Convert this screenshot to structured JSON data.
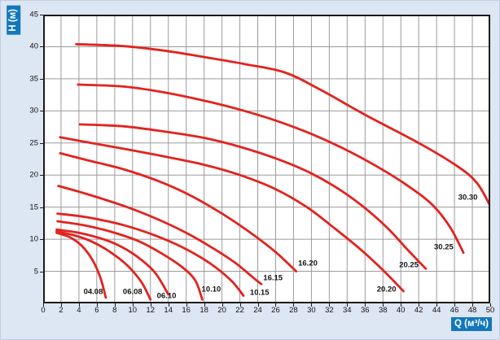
{
  "axis_title_background": "#1277bd",
  "chart_data": {
    "type": "line",
    "title": "",
    "xlabel": "Q (м³/ч)",
    "ylabel": "H (м)",
    "xlim": [
      0,
      50
    ],
    "ylim": [
      0,
      45
    ],
    "x_ticks": [
      0,
      2,
      4,
      6,
      8,
      10,
      12,
      14,
      16,
      18,
      20,
      22,
      24,
      26,
      28,
      30,
      32,
      34,
      36,
      38,
      40,
      42,
      44,
      46,
      48,
      50
    ],
    "y_ticks": [
      5,
      10,
      15,
      20,
      25,
      30,
      35,
      40,
      45
    ],
    "grid": true,
    "grid_color": "#9b9b9b",
    "frame_color": "#1b1b1b",
    "plot_background": "#ffffff",
    "curve_color": "#e2231f",
    "legend_position": "none",
    "series": [
      {
        "name": "04.08",
        "label_pos": {
          "x": 5.6,
          "y": 1.8
        },
        "points": [
          [
            1.5,
            11.0
          ],
          [
            3.0,
            10.3
          ],
          [
            4.3,
            9.0
          ],
          [
            5.5,
            6.8
          ],
          [
            6.4,
            4.0
          ],
          [
            7.0,
            0.9
          ]
        ]
      },
      {
        "name": "06.08",
        "label_pos": {
          "x": 10.0,
          "y": 1.8
        },
        "points": [
          [
            1.5,
            11.2
          ],
          [
            3.5,
            10.6
          ],
          [
            5.5,
            9.6
          ],
          [
            7.5,
            8.0
          ],
          [
            9.5,
            5.8
          ],
          [
            11.0,
            3.3
          ],
          [
            12.0,
            0.6
          ]
        ]
      },
      {
        "name": "06.10",
        "label_pos": {
          "x": 13.8,
          "y": 1.2
        },
        "points": [
          [
            1.5,
            11.5
          ],
          [
            4.0,
            11.0
          ],
          [
            6.5,
            10.1
          ],
          [
            8.5,
            9.0
          ],
          [
            10.5,
            7.3
          ],
          [
            12.5,
            4.8
          ],
          [
            14.0,
            1.4
          ]
        ]
      },
      {
        "name": "10.10",
        "label_pos": {
          "x": 18.8,
          "y": 2.2
        },
        "points": [
          [
            1.6,
            12.8
          ],
          [
            4.5,
            12.2
          ],
          [
            7.5,
            11.2
          ],
          [
            10.5,
            9.8
          ],
          [
            13.0,
            8.0
          ],
          [
            15.5,
            5.7
          ],
          [
            17.0,
            3.6
          ],
          [
            17.8,
            0.6
          ]
        ]
      },
      {
        "name": "10.15",
        "label_pos": {
          "x": 24.2,
          "y": 1.6
        },
        "points": [
          [
            1.6,
            14.0
          ],
          [
            5.0,
            13.4
          ],
          [
            9.0,
            12.2
          ],
          [
            12.5,
            10.6
          ],
          [
            15.5,
            8.8
          ],
          [
            18.5,
            6.4
          ],
          [
            21.0,
            3.6
          ],
          [
            22.4,
            1.2
          ]
        ]
      },
      {
        "name": "16.15",
        "label_pos": {
          "x": 25.7,
          "y": 3.9
        },
        "points": [
          [
            1.7,
            18.3
          ],
          [
            5.0,
            17.0
          ],
          [
            9.0,
            15.2
          ],
          [
            12.5,
            13.3
          ],
          [
            16.0,
            11.0
          ],
          [
            19.0,
            8.6
          ],
          [
            21.5,
            6.3
          ],
          [
            23.5,
            4.0
          ],
          [
            24.4,
            3.0
          ]
        ]
      },
      {
        "name": "16.20",
        "label_pos": {
          "x": 29.6,
          "y": 6.2
        },
        "points": [
          [
            1.9,
            23.4
          ],
          [
            5.0,
            22.3
          ],
          [
            9.0,
            20.9
          ],
          [
            13.0,
            19.0
          ],
          [
            16.5,
            16.8
          ],
          [
            20.0,
            14.0
          ],
          [
            23.0,
            11.2
          ],
          [
            26.0,
            8.0
          ],
          [
            28.3,
            5.0
          ]
        ]
      },
      {
        "name": "20.20",
        "label_pos": {
          "x": 38.4,
          "y": 2.2
        },
        "points": [
          [
            1.9,
            25.9
          ],
          [
            5.0,
            25.1
          ],
          [
            9.0,
            24.1
          ],
          [
            13.5,
            22.9
          ],
          [
            18.0,
            21.6
          ],
          [
            22.0,
            20.0
          ],
          [
            26.0,
            17.8
          ],
          [
            29.5,
            15.0
          ],
          [
            32.5,
            11.8
          ],
          [
            35.5,
            8.4
          ],
          [
            38.0,
            5.2
          ],
          [
            40.3,
            1.9
          ]
        ]
      },
      {
        "name": "20.25",
        "label_pos": {
          "x": 40.9,
          "y": 6.0
        },
        "points": [
          [
            4.1,
            27.9
          ],
          [
            9.0,
            27.6
          ],
          [
            13.5,
            26.8
          ],
          [
            18.0,
            25.8
          ],
          [
            22.0,
            24.4
          ],
          [
            26.0,
            22.6
          ],
          [
            29.5,
            20.6
          ],
          [
            32.5,
            18.3
          ],
          [
            35.5,
            15.4
          ],
          [
            38.4,
            11.9
          ],
          [
            40.8,
            8.3
          ],
          [
            42.8,
            5.4
          ]
        ]
      },
      {
        "name": "30.25",
        "label_pos": {
          "x": 44.8,
          "y": 8.8
        },
        "points": [
          [
            3.9,
            34.1
          ],
          [
            9.0,
            33.8
          ],
          [
            13.5,
            32.9
          ],
          [
            18.0,
            31.6
          ],
          [
            22.0,
            30.2
          ],
          [
            26.0,
            28.5
          ],
          [
            30.0,
            26.4
          ],
          [
            33.5,
            24.2
          ],
          [
            37.0,
            21.6
          ],
          [
            40.5,
            18.6
          ],
          [
            43.5,
            15.4
          ],
          [
            45.5,
            11.9
          ],
          [
            47.0,
            7.9
          ]
        ]
      },
      {
        "name": "30.30",
        "label_pos": {
          "x": 47.5,
          "y": 16.5
        },
        "points": [
          [
            3.7,
            40.4
          ],
          [
            9.0,
            40.1
          ],
          [
            13.5,
            39.4
          ],
          [
            18.0,
            38.4
          ],
          [
            22.5,
            37.3
          ],
          [
            27.0,
            36.0
          ],
          [
            31.0,
            33.3
          ],
          [
            36.0,
            29.4
          ],
          [
            42.0,
            25.0
          ],
          [
            46.3,
            21.4
          ],
          [
            48.5,
            18.8
          ],
          [
            50.0,
            15.2
          ]
        ]
      }
    ]
  }
}
